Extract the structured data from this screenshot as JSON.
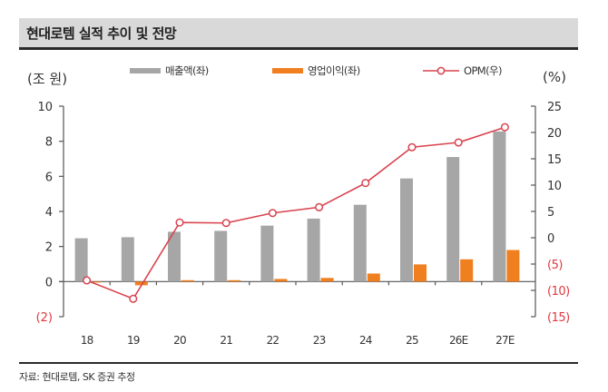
{
  "header": {
    "title": "현대로템 실적 추이 및 전망"
  },
  "units": {
    "left": "(조 원)",
    "right": "(%)"
  },
  "legend": [
    {
      "label": "매출액(좌)",
      "color": "#a6a6a6",
      "kind": "bar"
    },
    {
      "label": "영업이익(좌)",
      "color": "#f07f1f",
      "kind": "bar"
    },
    {
      "label": "OPM(우)",
      "color": "#d9434f",
      "kind": "line-marker"
    }
  ],
  "footer": {
    "source": "자료: 현대로템, SK 증권 추정"
  },
  "chart_data": {
    "type": "bar",
    "title": "현대로템 실적 추이 및 전망",
    "xlabel": "",
    "ylabel": "(조 원)",
    "ylabel_right": "(%)",
    "categories": [
      "18",
      "19",
      "20",
      "21",
      "22",
      "23",
      "24",
      "25",
      "26E",
      "27E"
    ],
    "series": [
      {
        "name": "매출액(좌)",
        "type": "bar",
        "axis": "left",
        "color": "#a6a6a6",
        "values": [
          2.47,
          2.53,
          2.84,
          2.89,
          3.19,
          3.59,
          4.38,
          5.88,
          7.1,
          8.56
        ]
      },
      {
        "name": "영업이익(좌)",
        "type": "bar",
        "axis": "left",
        "color": "#f07f1f",
        "values": [
          -0.05,
          -0.21,
          0.08,
          0.08,
          0.15,
          0.21,
          0.46,
          0.98,
          1.27,
          1.8
        ]
      },
      {
        "name": "OPM(우)",
        "type": "line",
        "axis": "right",
        "color": "#d9434f",
        "values": [
          -8.1,
          -11.6,
          2.9,
          2.8,
          4.7,
          5.8,
          10.4,
          17.2,
          18.1,
          21.0
        ]
      }
    ],
    "ylim": [
      -2,
      10
    ],
    "ylim_right": [
      -15,
      25
    ],
    "yticks": [
      {
        "value": -2,
        "label": "(2)",
        "negative": true
      },
      {
        "value": 0,
        "label": "0"
      },
      {
        "value": 2,
        "label": "2"
      },
      {
        "value": 4,
        "label": "4"
      },
      {
        "value": 6,
        "label": "6"
      },
      {
        "value": 8,
        "label": "8"
      },
      {
        "value": 10,
        "label": "10"
      }
    ],
    "yticks_right": [
      {
        "value": -15,
        "label": "(15)",
        "negative": true
      },
      {
        "value": -10,
        "label": "(10)",
        "negative": true
      },
      {
        "value": -5,
        "label": "(5)",
        "negative": true
      },
      {
        "value": 0,
        "label": "0"
      },
      {
        "value": 5,
        "label": "5"
      },
      {
        "value": 10,
        "label": "10"
      },
      {
        "value": 15,
        "label": "15"
      },
      {
        "value": 20,
        "label": "20"
      },
      {
        "value": 25,
        "label": "25"
      }
    ],
    "grid": false,
    "legend_position": "top",
    "negative_label_color": "#e0393e"
  }
}
